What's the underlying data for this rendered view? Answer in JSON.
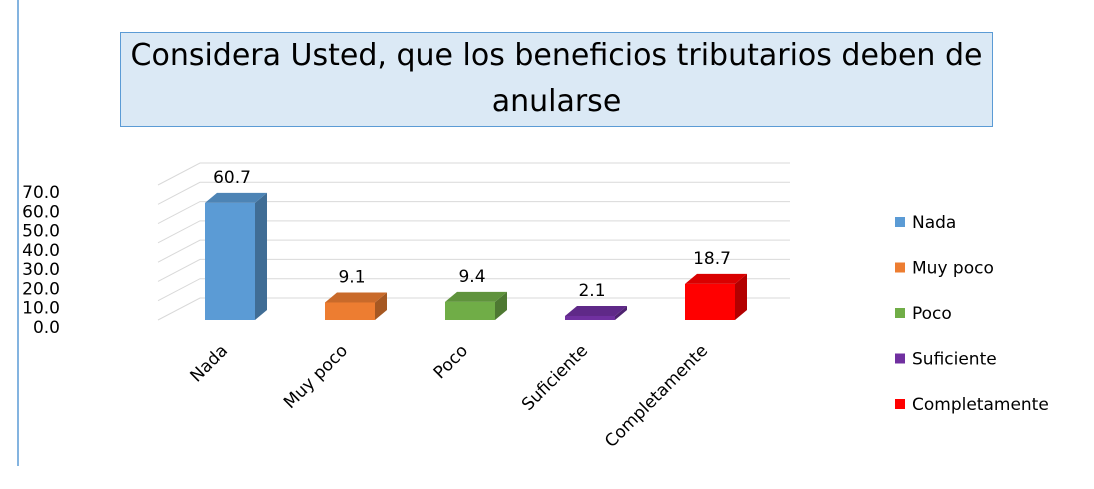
{
  "chart_data": {
    "type": "bar3d",
    "title": "Considera Usted, que los beneficios tributarios deben de anularse",
    "categories": [
      "Nada",
      "Muy poco",
      "Poco",
      "Suficiente",
      "Completamente"
    ],
    "values": [
      60.7,
      9.1,
      9.4,
      2.1,
      18.7
    ],
    "colors": [
      "#5b9bd5",
      "#ed7d31",
      "#70ad47",
      "#7030a0",
      "#ff0000"
    ],
    "ylim": [
      0,
      70
    ],
    "yticks": [
      {
        "value": 0,
        "label": "0.0"
      },
      {
        "value": 10,
        "label": "10.0"
      },
      {
        "value": 20,
        "label": "20.0"
      },
      {
        "value": 30,
        "label": "30.0"
      },
      {
        "value": 40,
        "label": "40.0"
      },
      {
        "value": 50,
        "label": "50.0"
      },
      {
        "value": 60,
        "label": "60.0"
      },
      {
        "value": 70,
        "label": "70.0"
      }
    ],
    "grid": true,
    "legend": "right"
  }
}
